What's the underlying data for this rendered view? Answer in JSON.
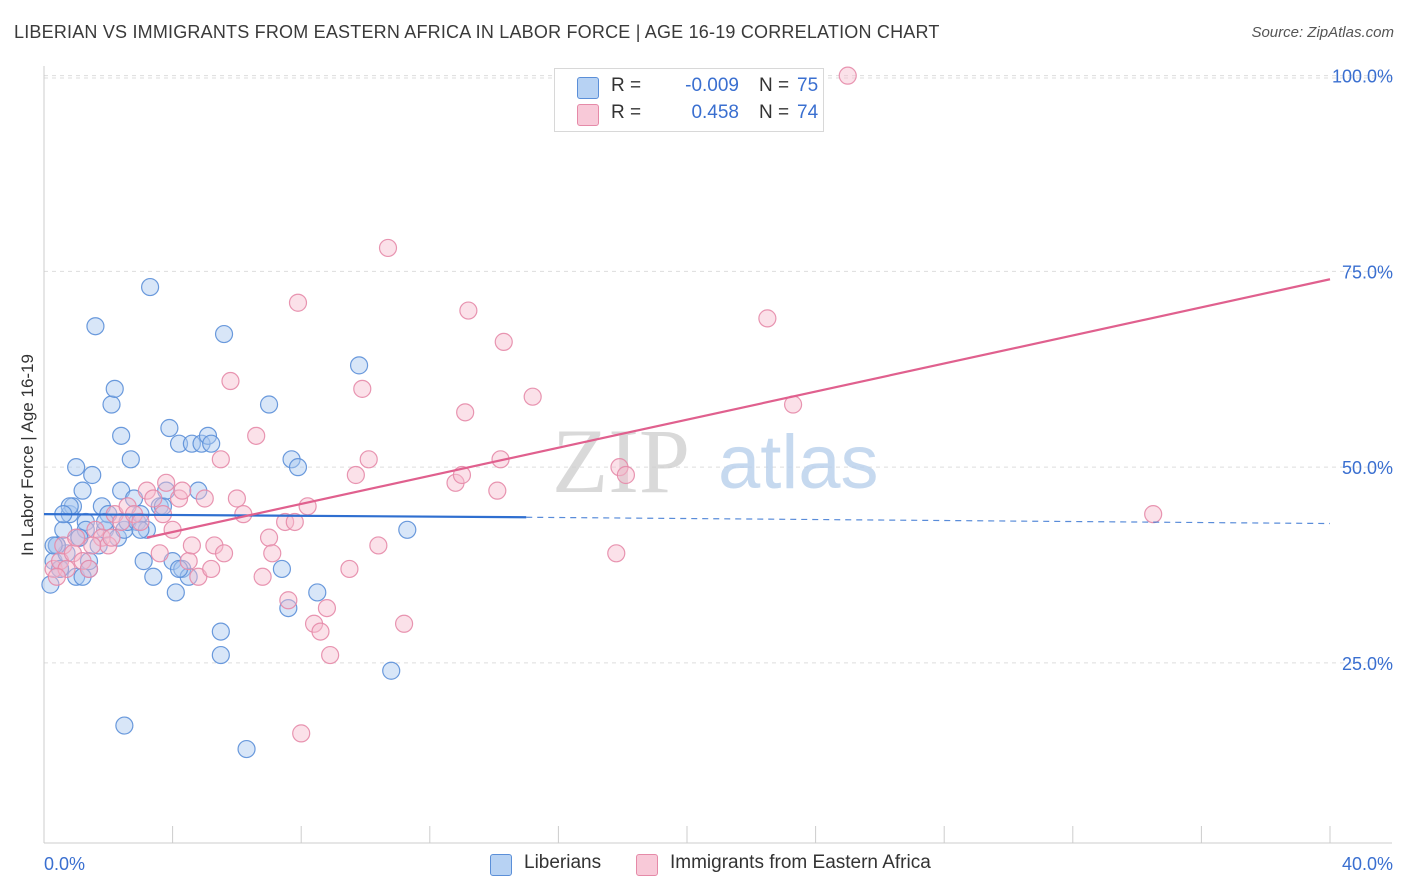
{
  "title": "LIBERIAN VS IMMIGRANTS FROM EASTERN AFRICA IN LABOR FORCE | AGE 16-19 CORRELATION CHART",
  "source": "Source: ZipAtlas.com",
  "watermark": {
    "zip": "ZIP",
    "atlas": "atlas"
  },
  "colors": {
    "blue_fill": "#a8c8f0",
    "blue_stroke": "#5b8fd8",
    "blue_line": "#2f6fd0",
    "pink_fill": "#f6bccf",
    "pink_stroke": "#e58aa8",
    "pink_line": "#e0608e",
    "tick_label": "#3a6fd0",
    "grid": "#dddddd"
  },
  "legend": {
    "rows": [
      {
        "r_label": "R =",
        "r_value": "-0.009",
        "n_label": "N =",
        "n_value": "75"
      },
      {
        "r_label": "R =",
        "r_value": "0.458",
        "n_label": "N =",
        "n_value": "74"
      }
    ]
  },
  "bottom_legend": {
    "series1": "Liberians",
    "series2": "Immigrants from Eastern Africa"
  },
  "chart_data": {
    "type": "scatter",
    "title": "LIBERIAN VS IMMIGRANTS FROM EASTERN AFRICA IN LABOR FORCE | AGE 16-19 CORRELATION CHART",
    "ylabel": "In Labor Force | Age 16-19",
    "xlabel": "",
    "x_tick_labels": [
      "0.0%",
      "40.0%"
    ],
    "y_tick_labels": [
      "25.0%",
      "50.0%",
      "75.0%",
      "100.0%"
    ],
    "y_ticks": [
      25,
      50,
      75,
      100
    ],
    "xlim": [
      0,
      40
    ],
    "ylim": [
      2,
      102
    ],
    "grid": true,
    "legend_position": "top-center",
    "series": [
      {
        "name": "Liberians",
        "color": "blue",
        "trend": {
          "x": [
            0,
            15
          ],
          "y": [
            44.0,
            43.6
          ],
          "dashed_to": [
            40,
            42.8
          ]
        },
        "points": [
          [
            0.2,
            35
          ],
          [
            0.3,
            38
          ],
          [
            0.4,
            40
          ],
          [
            0.5,
            37
          ],
          [
            0.6,
            42
          ],
          [
            0.7,
            39
          ],
          [
            0.8,
            44
          ],
          [
            0.9,
            45
          ],
          [
            1.0,
            36
          ],
          [
            1.1,
            41
          ],
          [
            1.2,
            47
          ],
          [
            1.3,
            43
          ],
          [
            1.4,
            37
          ],
          [
            1.5,
            49
          ],
          [
            1.6,
            68
          ],
          [
            1.7,
            40
          ],
          [
            1.8,
            45
          ],
          [
            1.9,
            42
          ],
          [
            2.0,
            44
          ],
          [
            2.1,
            58
          ],
          [
            2.2,
            60
          ],
          [
            2.3,
            41
          ],
          [
            2.4,
            47
          ],
          [
            2.5,
            42
          ],
          [
            2.6,
            43
          ],
          [
            2.7,
            51
          ],
          [
            2.8,
            46
          ],
          [
            2.9,
            43
          ],
          [
            3.0,
            44
          ],
          [
            3.1,
            38
          ],
          [
            3.2,
            42
          ],
          [
            3.3,
            73
          ],
          [
            3.4,
            36
          ],
          [
            3.6,
            45
          ],
          [
            3.7,
            45
          ],
          [
            3.8,
            47
          ],
          [
            3.9,
            55
          ],
          [
            4.0,
            38
          ],
          [
            4.1,
            34
          ],
          [
            4.2,
            53
          ],
          [
            4.3,
            37
          ],
          [
            4.5,
            36
          ],
          [
            4.6,
            53
          ],
          [
            4.8,
            47
          ],
          [
            4.9,
            53
          ],
          [
            5.1,
            54
          ],
          [
            5.2,
            53
          ],
          [
            5.5,
            29
          ],
          [
            5.5,
            26
          ],
          [
            5.6,
            67
          ],
          [
            6.3,
            14
          ],
          [
            7.0,
            58
          ],
          [
            7.4,
            37
          ],
          [
            7.6,
            32
          ],
          [
            7.7,
            51
          ],
          [
            7.9,
            50
          ],
          [
            8.5,
            34
          ],
          [
            9.8,
            63
          ],
          [
            10.8,
            24
          ],
          [
            11.3,
            42
          ],
          [
            0.4,
            40
          ],
          [
            0.5,
            37
          ],
          [
            0.8,
            45
          ],
          [
            1.0,
            50
          ],
          [
            1.2,
            36
          ],
          [
            1.3,
            42
          ],
          [
            2.5,
            17
          ],
          [
            2.4,
            54
          ],
          [
            0.6,
            44
          ],
          [
            0.3,
            40
          ],
          [
            1.1,
            41
          ],
          [
            1.9,
            43
          ],
          [
            3.0,
            42
          ],
          [
            4.2,
            37
          ],
          [
            1.4,
            38
          ]
        ]
      },
      {
        "name": "Immigrants from Eastern Africa",
        "color": "pink",
        "trend": {
          "x": [
            3.2,
            40
          ],
          "y": [
            41,
            74
          ]
        },
        "points": [
          [
            0.3,
            37
          ],
          [
            0.5,
            38
          ],
          [
            0.6,
            40
          ],
          [
            0.7,
            37
          ],
          [
            0.9,
            39
          ],
          [
            1.0,
            41
          ],
          [
            1.2,
            38
          ],
          [
            1.4,
            37
          ],
          [
            1.6,
            42
          ],
          [
            1.8,
            41
          ],
          [
            2.0,
            40
          ],
          [
            2.2,
            44
          ],
          [
            2.4,
            43
          ],
          [
            2.6,
            45
          ],
          [
            2.8,
            44
          ],
          [
            3.0,
            43
          ],
          [
            3.2,
            47
          ],
          [
            3.4,
            46
          ],
          [
            3.6,
            39
          ],
          [
            3.7,
            44
          ],
          [
            3.8,
            48
          ],
          [
            4.0,
            42
          ],
          [
            4.2,
            46
          ],
          [
            4.3,
            47
          ],
          [
            4.5,
            38
          ],
          [
            4.6,
            40
          ],
          [
            4.8,
            36
          ],
          [
            5.0,
            46
          ],
          [
            5.2,
            37
          ],
          [
            5.3,
            40
          ],
          [
            5.5,
            51
          ],
          [
            5.6,
            39
          ],
          [
            5.8,
            61
          ],
          [
            6.0,
            46
          ],
          [
            6.2,
            44
          ],
          [
            6.6,
            54
          ],
          [
            6.8,
            36
          ],
          [
            7.0,
            41
          ],
          [
            7.1,
            39
          ],
          [
            7.5,
            43
          ],
          [
            7.6,
            33
          ],
          [
            7.8,
            43
          ],
          [
            7.9,
            71
          ],
          [
            8.0,
            16
          ],
          [
            8.2,
            45
          ],
          [
            8.4,
            30
          ],
          [
            8.6,
            29
          ],
          [
            8.8,
            32
          ],
          [
            8.9,
            26
          ],
          [
            9.5,
            37
          ],
          [
            9.7,
            49
          ],
          [
            9.9,
            60
          ],
          [
            10.1,
            51
          ],
          [
            10.4,
            40
          ],
          [
            10.7,
            78
          ],
          [
            11.2,
            30
          ],
          [
            12.8,
            48
          ],
          [
            13.0,
            49
          ],
          [
            13.1,
            57
          ],
          [
            13.2,
            70
          ],
          [
            14.1,
            47
          ],
          [
            14.2,
            51
          ],
          [
            14.3,
            66
          ],
          [
            15.2,
            59
          ],
          [
            17.8,
            39
          ],
          [
            17.9,
            50
          ],
          [
            18.1,
            49
          ],
          [
            22.5,
            69
          ],
          [
            23.3,
            58
          ],
          [
            25.0,
            100
          ],
          [
            34.5,
            44
          ],
          [
            0.4,
            36
          ],
          [
            1.5,
            40
          ],
          [
            2.1,
            41
          ]
        ]
      }
    ]
  }
}
